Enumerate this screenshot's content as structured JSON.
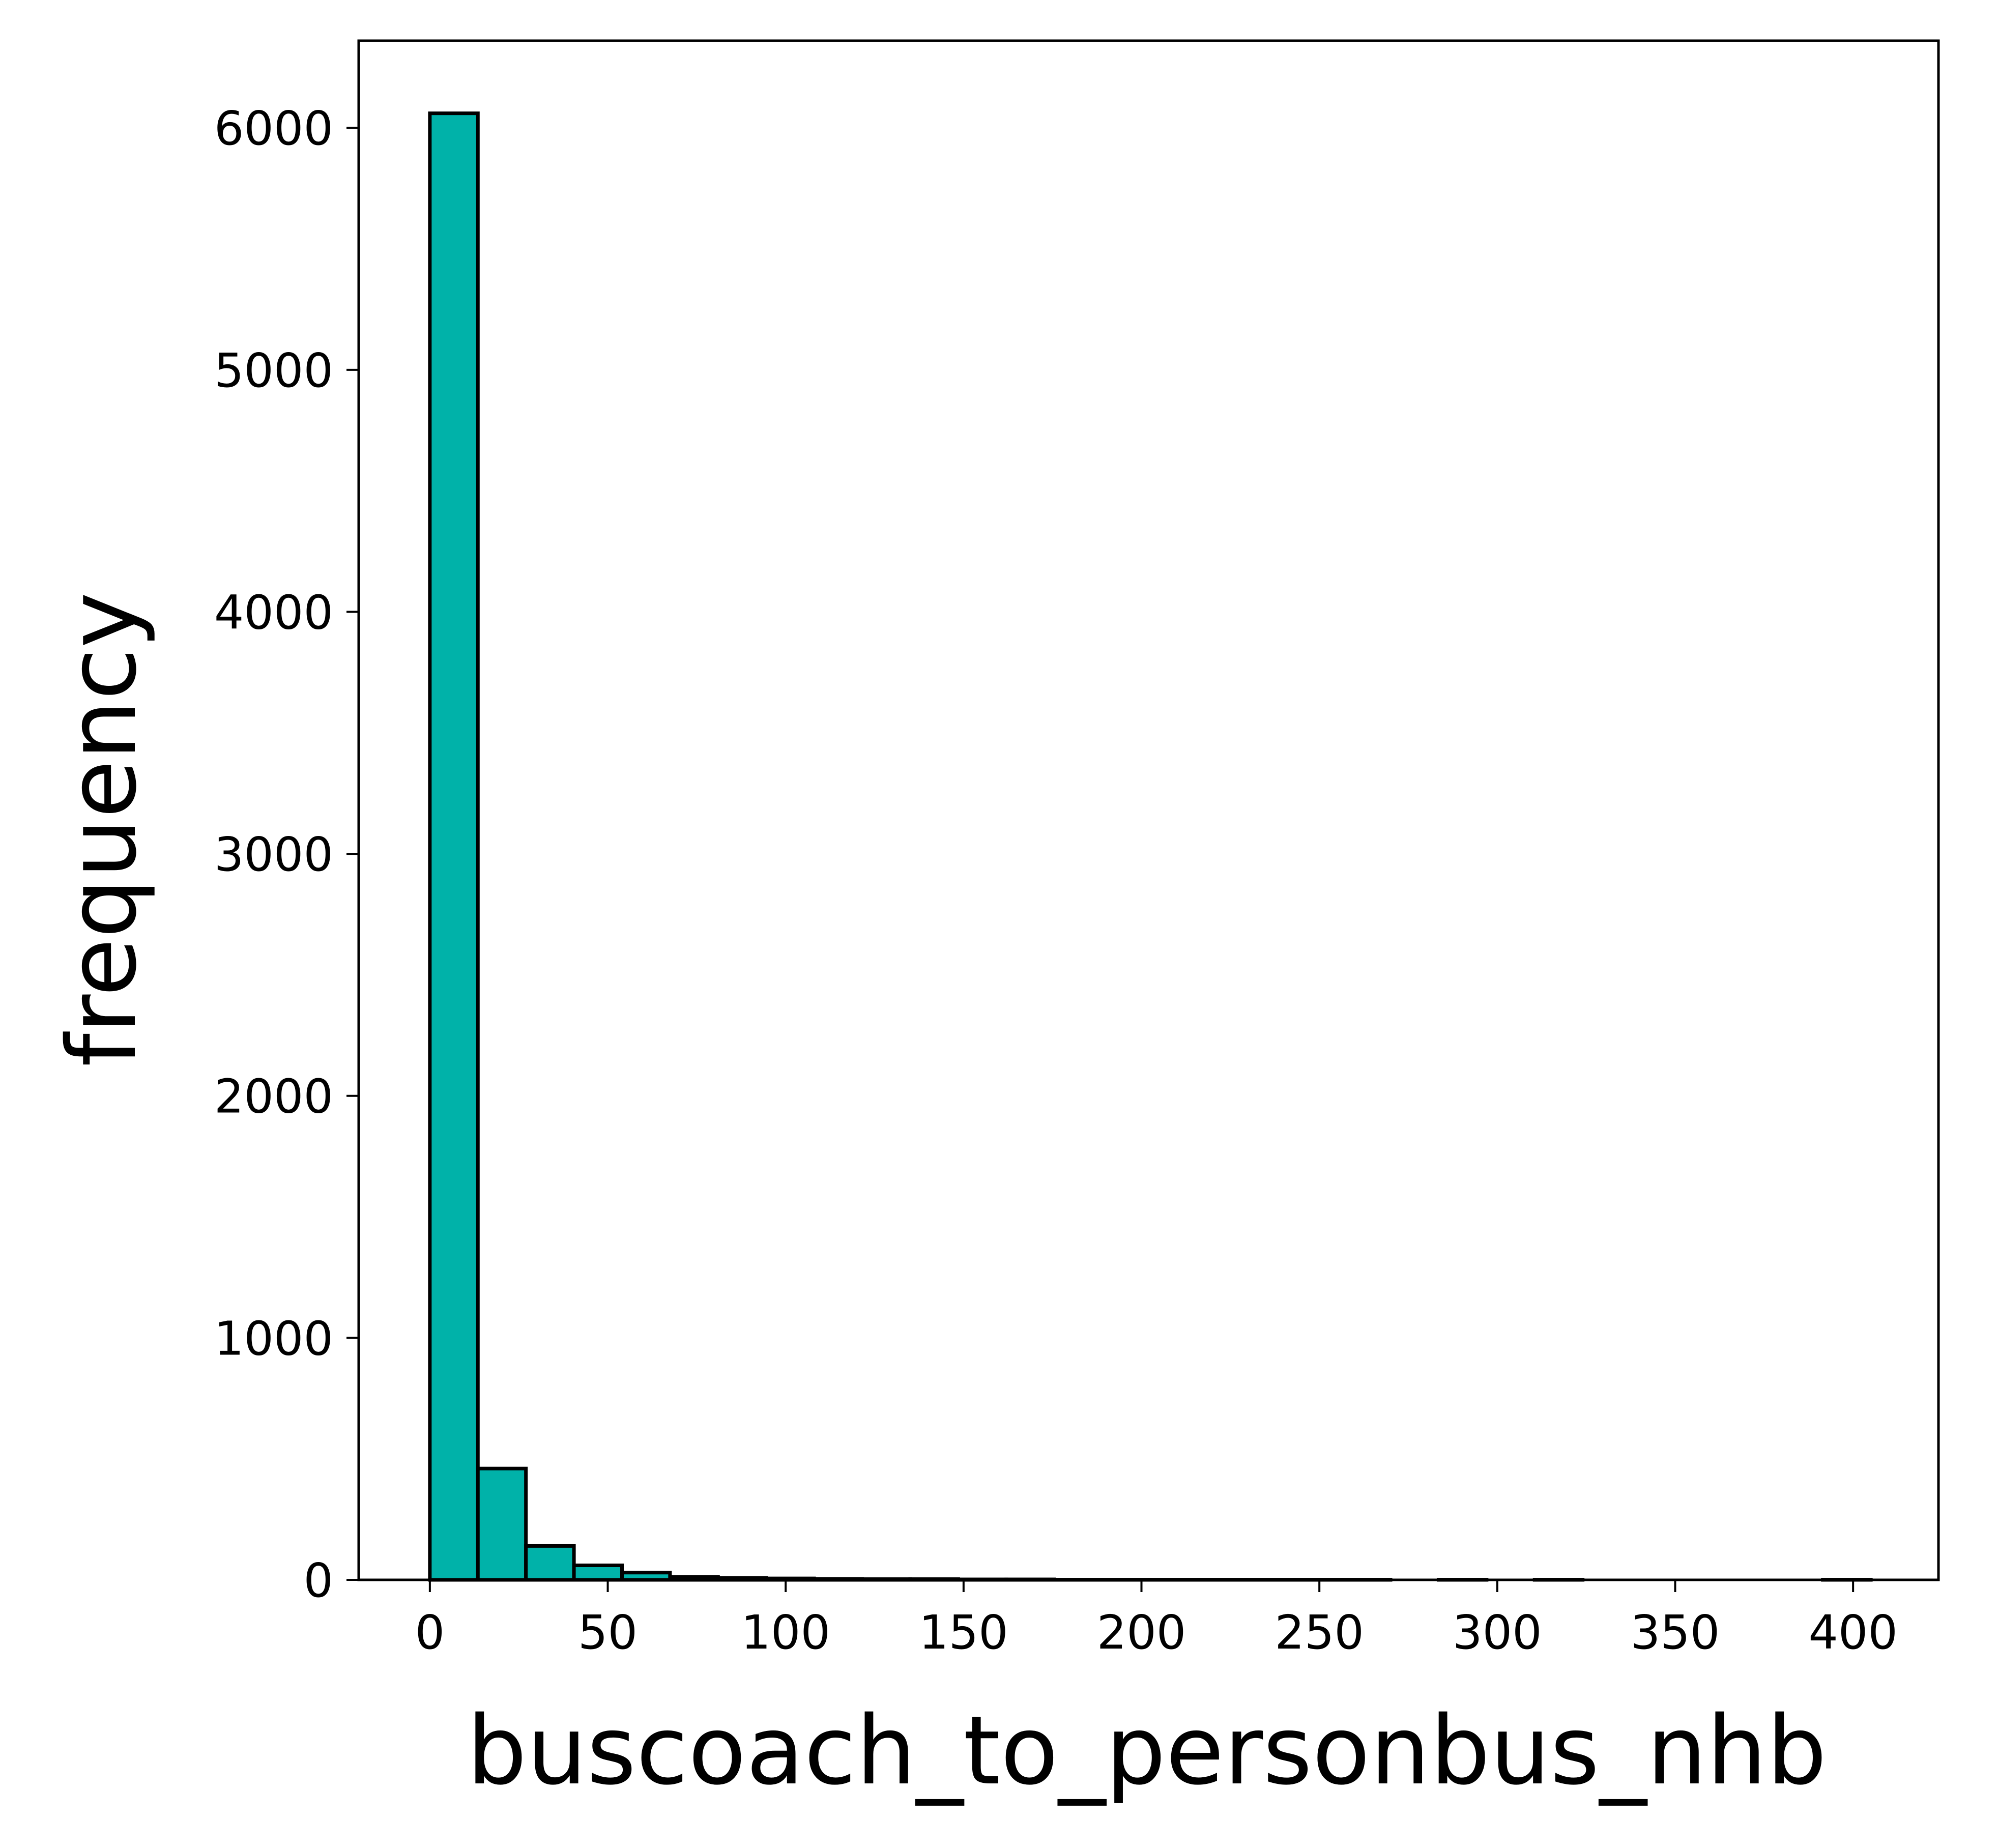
{
  "chart_data": {
    "type": "bar",
    "title": "",
    "xlabel": "buscoach_to_personbus_nhb",
    "ylabel": "frequency",
    "xlim": [
      -20,
      424
    ],
    "ylim": [
      0,
      6360
    ],
    "xticks": [
      0,
      50,
      100,
      150,
      200,
      250,
      300,
      350,
      400
    ],
    "yticks": [
      0,
      1000,
      2000,
      3000,
      4000,
      5000,
      6000
    ],
    "bar_color": "#00b2a9",
    "edge_color": "#000000",
    "grid": false,
    "bins": [
      {
        "x0": 0.0,
        "x1": 13.5,
        "count": 6060
      },
      {
        "x0": 13.5,
        "x1": 27.0,
        "count": 460
      },
      {
        "x0": 27.0,
        "x1": 40.5,
        "count": 140
      },
      {
        "x0": 40.5,
        "x1": 54.0,
        "count": 60
      },
      {
        "x0": 54.0,
        "x1": 67.5,
        "count": 30
      },
      {
        "x0": 67.5,
        "x1": 81.0,
        "count": 12
      },
      {
        "x0": 81.0,
        "x1": 94.5,
        "count": 8
      },
      {
        "x0": 94.5,
        "x1": 108.0,
        "count": 6
      },
      {
        "x0": 108.0,
        "x1": 121.5,
        "count": 4
      },
      {
        "x0": 121.5,
        "x1": 135.0,
        "count": 3
      },
      {
        "x0": 135.0,
        "x1": 148.5,
        "count": 3
      },
      {
        "x0": 148.5,
        "x1": 162.0,
        "count": 2
      },
      {
        "x0": 162.0,
        "x1": 175.5,
        "count": 2
      },
      {
        "x0": 175.5,
        "x1": 189.0,
        "count": 1
      },
      {
        "x0": 189.0,
        "x1": 202.5,
        "count": 1
      },
      {
        "x0": 202.5,
        "x1": 216.0,
        "count": 1
      },
      {
        "x0": 216.0,
        "x1": 229.5,
        "count": 1
      },
      {
        "x0": 229.5,
        "x1": 243.0,
        "count": 1
      },
      {
        "x0": 243.0,
        "x1": 256.5,
        "count": 1
      },
      {
        "x0": 256.5,
        "x1": 270.0,
        "count": 1
      },
      {
        "x0": 270.0,
        "x1": 283.5,
        "count": 0
      },
      {
        "x0": 283.5,
        "x1": 297.0,
        "count": 1
      },
      {
        "x0": 297.0,
        "x1": 310.5,
        "count": 0
      },
      {
        "x0": 310.5,
        "x1": 324.0,
        "count": 1
      },
      {
        "x0": 324.0,
        "x1": 337.5,
        "count": 0
      },
      {
        "x0": 337.5,
        "x1": 351.0,
        "count": 0
      },
      {
        "x0": 351.0,
        "x1": 364.5,
        "count": 0
      },
      {
        "x0": 364.5,
        "x1": 378.0,
        "count": 0
      },
      {
        "x0": 378.0,
        "x1": 391.5,
        "count": 0
      },
      {
        "x0": 391.5,
        "x1": 405.0,
        "count": 1
      }
    ]
  }
}
